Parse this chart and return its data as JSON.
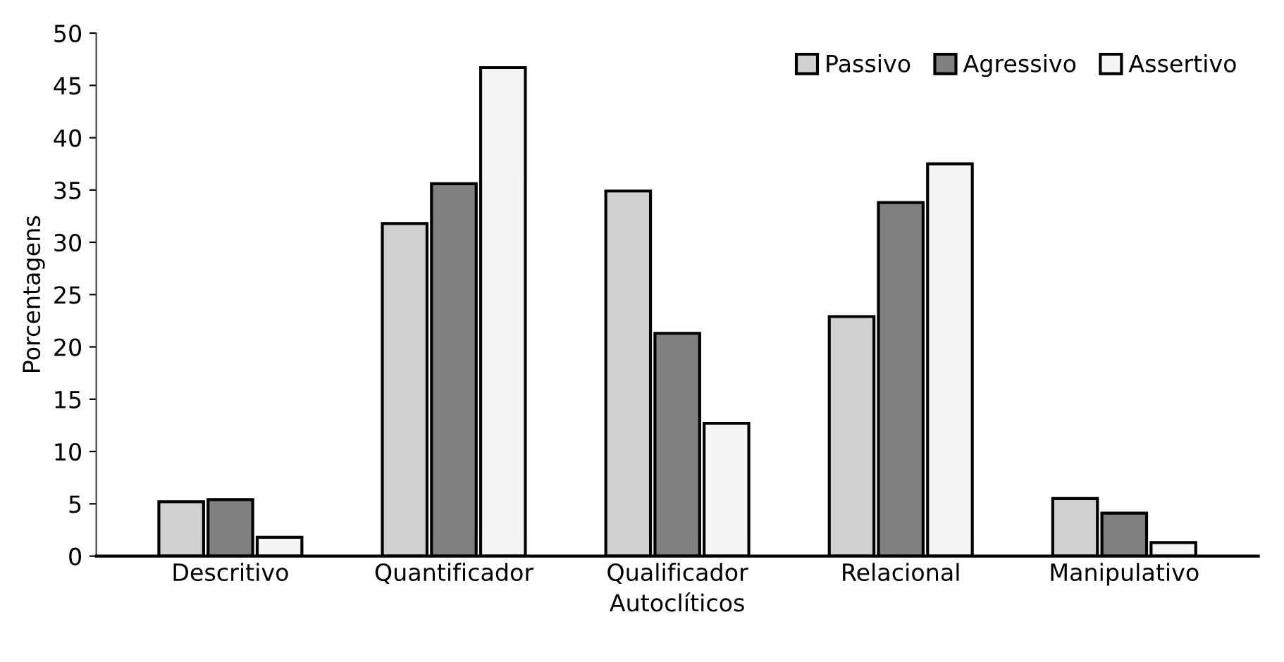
{
  "chart_data": {
    "type": "bar",
    "xlabel": "Autoclíticos",
    "ylabel": "Porcentagens",
    "categories": [
      "Descritivo",
      "Quantificador",
      "Qualificador",
      "Relacional",
      "Manipulativo"
    ],
    "series": [
      {
        "name": "Passivo",
        "color": "#d0d0d0",
        "values": [
          5.2,
          31.8,
          34.9,
          22.9,
          5.5
        ]
      },
      {
        "name": "Agressivo",
        "color": "#808080",
        "values": [
          5.4,
          35.6,
          21.3,
          33.8,
          4.1
        ]
      },
      {
        "name": "Assertivo",
        "color": "#f4f4f4",
        "values": [
          1.8,
          46.7,
          12.7,
          37.5,
          1.3
        ]
      }
    ],
    "ylim": [
      0,
      50
    ],
    "yticks": [
      0,
      5,
      10,
      15,
      20,
      25,
      30,
      35,
      40,
      45,
      50
    ],
    "grid": false,
    "legend": "top right"
  }
}
